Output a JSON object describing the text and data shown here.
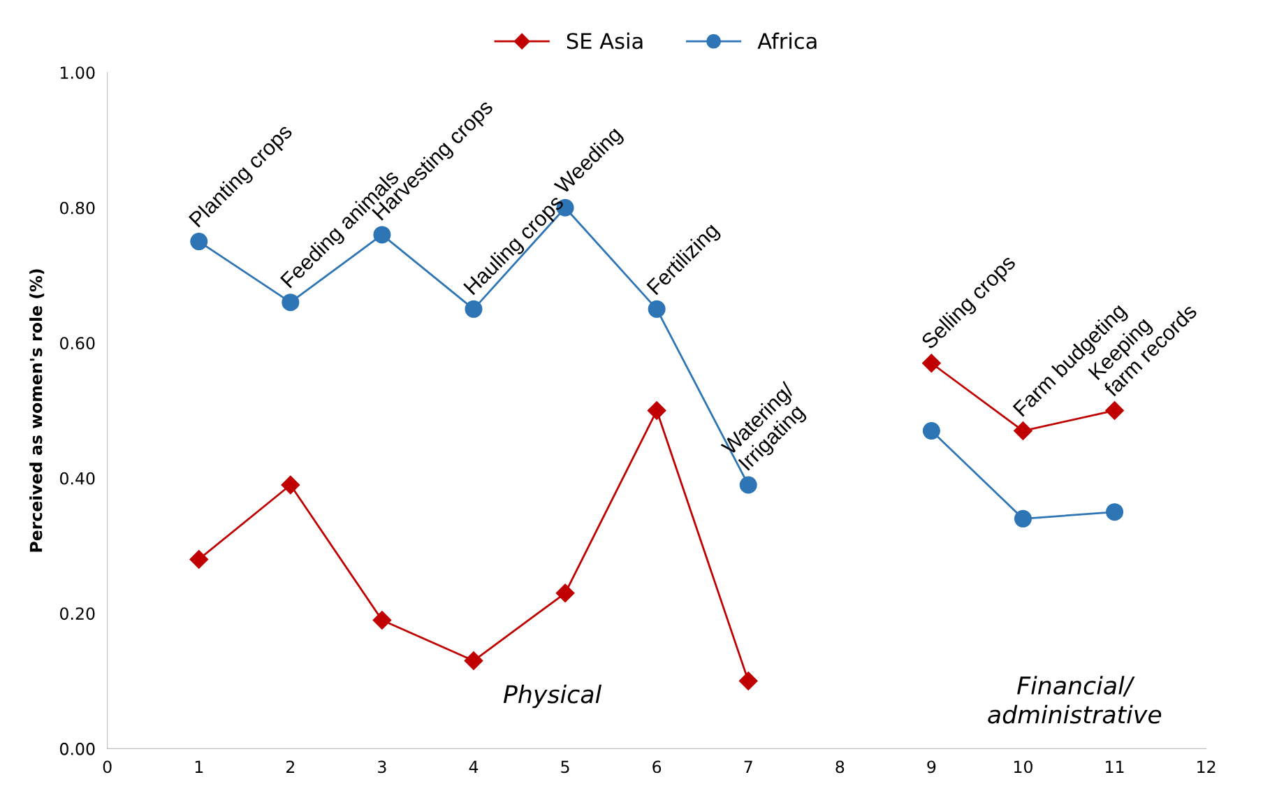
{
  "chart_data": {
    "type": "line",
    "ylabel": "Perceived as women's role (%)",
    "x": [
      1,
      2,
      3,
      4,
      5,
      6,
      7,
      8,
      9,
      10,
      11
    ],
    "series": [
      {
        "name": "SE Asia",
        "color": "#c00000",
        "marker": "diamond",
        "values": [
          0.28,
          0.39,
          0.19,
          0.13,
          0.23,
          0.5,
          0.1,
          null,
          0.57,
          0.47,
          0.5
        ]
      },
      {
        "name": "Africa",
        "color": "#2e75b6",
        "marker": "circle",
        "values": [
          0.75,
          0.66,
          0.76,
          0.65,
          0.8,
          0.65,
          0.39,
          null,
          0.47,
          0.34,
          0.35
        ]
      }
    ],
    "xlim": [
      0,
      12
    ],
    "xticks": [
      0,
      1,
      2,
      3,
      4,
      5,
      6,
      7,
      8,
      9,
      10,
      11,
      12
    ],
    "ylim": [
      0,
      1
    ],
    "yticks": [
      {
        "value": 0,
        "label": "0.00"
      },
      {
        "value": 0.2,
        "label": "0.20"
      },
      {
        "value": 0.4,
        "label": "0.40"
      },
      {
        "value": 0.6,
        "label": "0.60"
      },
      {
        "value": 0.8,
        "label": "0.80"
      },
      {
        "value": 1,
        "label": "1.00"
      }
    ],
    "annotations": [
      {
        "text": "Planting crops",
        "x": 1,
        "y": 0.75
      },
      {
        "text": "Feeding animals",
        "x": 2,
        "y": 0.66
      },
      {
        "text": "Harvesting crops",
        "x": 3,
        "y": 0.76
      },
      {
        "text": "Hauling crops",
        "x": 4,
        "y": 0.65
      },
      {
        "text": "Weeding",
        "x": 5,
        "y": 0.8
      },
      {
        "text": "Fertilizing",
        "x": 6,
        "y": 0.65
      },
      {
        "text": "Watering/\nIrrigating",
        "x": 7,
        "y": 0.39
      },
      {
        "text": "Selling crops",
        "x": 9,
        "y": 0.57
      },
      {
        "text": "Farm budgeting",
        "x": 10,
        "y": 0.47
      },
      {
        "text": "Keeping\nfarm records",
        "x": 11,
        "y": 0.5
      },
      "Physical",
      "Financial/\nadministrative"
    ],
    "grid": false,
    "legend": "top",
    "line_style": "solid"
  }
}
